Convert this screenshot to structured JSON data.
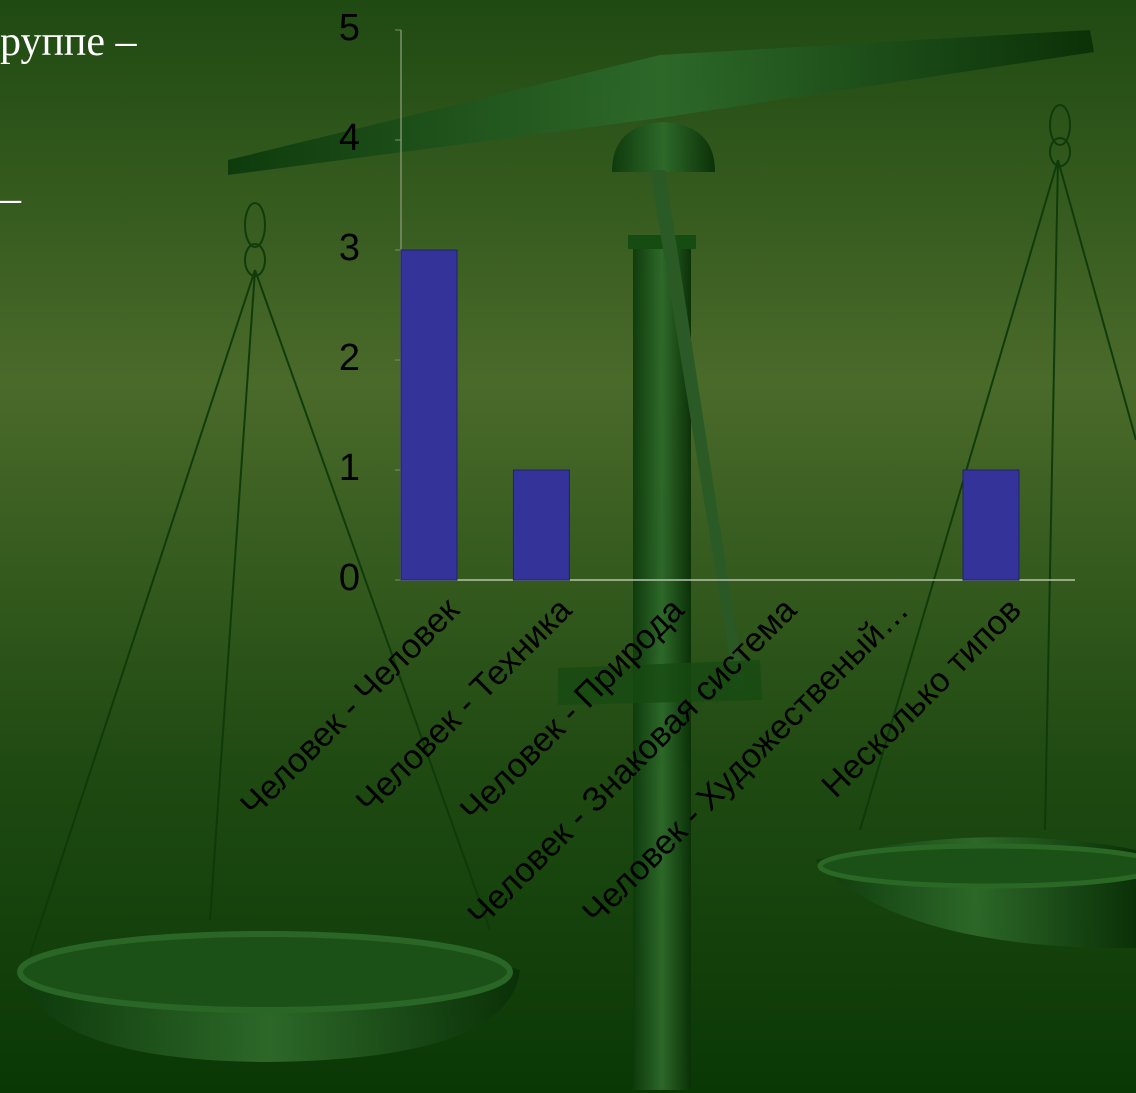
{
  "slide_text": [
    "руппе –",
    "–"
  ],
  "chart_data": {
    "type": "bar",
    "categories": [
      "Человек - Человек",
      "Человек - Техника",
      "Человек - Природа",
      "Человек - Знаковая система",
      "Человек - Художественый…",
      "Несколько типов"
    ],
    "values": [
      3,
      1,
      0,
      0,
      0,
      1
    ],
    "color": "#333399",
    "ylim": [
      0,
      5
    ],
    "yticks": [
      0,
      1,
      2,
      3,
      4,
      5
    ],
    "grid": false
  }
}
